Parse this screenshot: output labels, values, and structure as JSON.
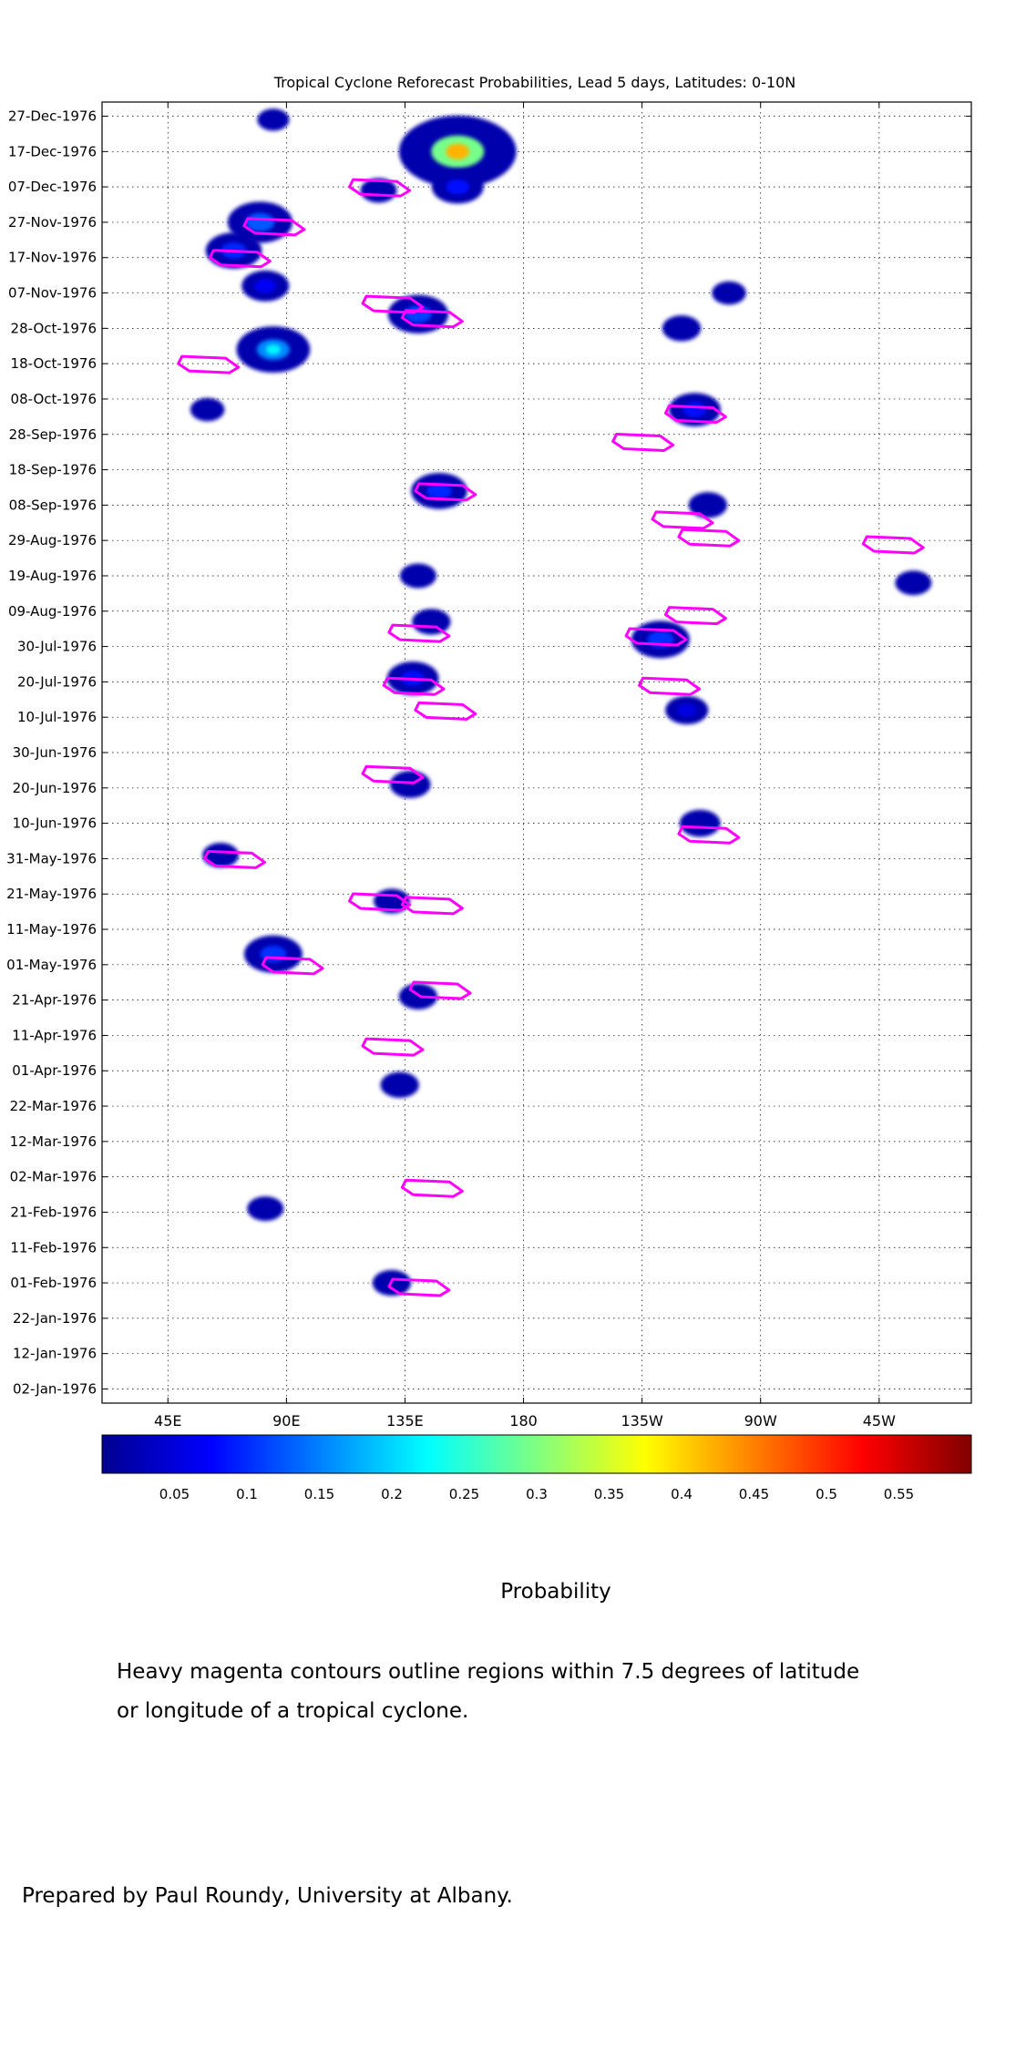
{
  "chart_data": {
    "type": "heatmap",
    "title": "Tropical Cyclone Reforecast Probabilities, Lead 5 days, Latitudes: 0-10N",
    "xlabel": "",
    "ylabel": "",
    "colorbar_label": "Probability",
    "x_ticks": [
      {
        "lon": 45,
        "label": "45E"
      },
      {
        "lon": 90,
        "label": "90E"
      },
      {
        "lon": 135,
        "label": "135E"
      },
      {
        "lon": 180,
        "label": "180"
      },
      {
        "lon": 225,
        "label": "135W"
      },
      {
        "lon": 270,
        "label": "90W"
      },
      {
        "lon": 315,
        "label": "45W"
      }
    ],
    "xlim": [
      20,
      350
    ],
    "y_ticks": [
      "02-Jan-1976",
      "12-Jan-1976",
      "22-Jan-1976",
      "01-Feb-1976",
      "11-Feb-1976",
      "21-Feb-1976",
      "02-Mar-1976",
      "12-Mar-1976",
      "22-Mar-1976",
      "01-Apr-1976",
      "11-Apr-1976",
      "21-Apr-1976",
      "01-May-1976",
      "11-May-1976",
      "21-May-1976",
      "31-May-1976",
      "10-Jun-1976",
      "20-Jun-1976",
      "30-Jun-1976",
      "10-Jul-1976",
      "20-Jul-1976",
      "30-Jul-1976",
      "09-Aug-1976",
      "19-Aug-1976",
      "29-Aug-1976",
      "08-Sep-1976",
      "18-Sep-1976",
      "28-Sep-1976",
      "08-Oct-1976",
      "18-Oct-1976",
      "28-Oct-1976",
      "07-Nov-1976",
      "17-Nov-1976",
      "27-Nov-1976",
      "07-Dec-1976",
      "17-Dec-1976",
      "27-Dec-1976"
    ],
    "ylim": [
      "29-Dec-1975",
      "31-Dec-1976"
    ],
    "grid": true,
    "colorbar": {
      "ticks": [
        0.05,
        0.1,
        0.15,
        0.2,
        0.25,
        0.3,
        0.35,
        0.4,
        0.45,
        0.5,
        0.55
      ],
      "range": [
        0.0,
        0.6
      ],
      "colormap": [
        "#00008f",
        "#0000ff",
        "#0080ff",
        "#00ffff",
        "#80ff80",
        "#ffff00",
        "#ff8000",
        "#ff0000",
        "#800000"
      ]
    },
    "blobs": [
      {
        "lon": 85,
        "date": "26-Dec-1976",
        "value": 0.03
      },
      {
        "lon": 155,
        "date": "17-Dec-1976",
        "value": 0.42
      },
      {
        "lon": 155,
        "date": "07-Dec-1976",
        "value": 0.12
      },
      {
        "lon": 125,
        "date": "06-Dec-1976",
        "value": 0.05
      },
      {
        "lon": 80,
        "date": "27-Nov-1976",
        "value": 0.18
      },
      {
        "lon": 70,
        "date": "19-Nov-1976",
        "value": 0.14
      },
      {
        "lon": 82,
        "date": "09-Nov-1976",
        "value": 0.1
      },
      {
        "lon": 140,
        "date": "01-Nov-1976",
        "value": 0.16
      },
      {
        "lon": 85,
        "date": "22-Oct-1976",
        "value": 0.22
      },
      {
        "lon": 60,
        "date": "05-Oct-1976",
        "value": 0.04
      },
      {
        "lon": 240,
        "date": "28-Oct-1976",
        "value": 0.06
      },
      {
        "lon": 245,
        "date": "05-Oct-1976",
        "value": 0.12
      },
      {
        "lon": 258,
        "date": "07-Nov-1976",
        "value": 0.04
      },
      {
        "lon": 148,
        "date": "12-Sep-1976",
        "value": 0.14
      },
      {
        "lon": 250,
        "date": "08-Sep-1976",
        "value": 0.06
      },
      {
        "lon": 328,
        "date": "17-Aug-1976",
        "value": 0.05
      },
      {
        "lon": 140,
        "date": "19-Aug-1976",
        "value": 0.05
      },
      {
        "lon": 145,
        "date": "06-Aug-1976",
        "value": 0.06
      },
      {
        "lon": 232,
        "date": "01-Aug-1976",
        "value": 0.15
      },
      {
        "lon": 138,
        "date": "21-Jul-1976",
        "value": 0.12
      },
      {
        "lon": 242,
        "date": "12-Jul-1976",
        "value": 0.08
      },
      {
        "lon": 137,
        "date": "21-Jun-1976",
        "value": 0.07
      },
      {
        "lon": 247,
        "date": "10-Jun-1976",
        "value": 0.07
      },
      {
        "lon": 65,
        "date": "01-Jun-1976",
        "value": 0.05
      },
      {
        "lon": 130,
        "date": "19-May-1976",
        "value": 0.05
      },
      {
        "lon": 85,
        "date": "04-May-1976",
        "value": 0.15
      },
      {
        "lon": 140,
        "date": "22-Apr-1976",
        "value": 0.06
      },
      {
        "lon": 133,
        "date": "28-Mar-1976",
        "value": 0.06
      },
      {
        "lon": 82,
        "date": "22-Feb-1976",
        "value": 0.05
      },
      {
        "lon": 130,
        "date": "01-Feb-1976",
        "value": 0.06
      }
    ],
    "contour_note": "Heavy magenta contours outline regions within 7.5 degrees of latitude or longitude of a tropical cyclone.",
    "contours": [
      {
        "lon": 125,
        "date": "07-Dec-1976"
      },
      {
        "lon": 85,
        "date": "26-Nov-1976"
      },
      {
        "lon": 72,
        "date": "17-Nov-1976"
      },
      {
        "lon": 130,
        "date": "04-Nov-1976"
      },
      {
        "lon": 145,
        "date": "31-Oct-1976"
      },
      {
        "lon": 60,
        "date": "18-Oct-1976"
      },
      {
        "lon": 245,
        "date": "04-Oct-1976"
      },
      {
        "lon": 225,
        "date": "26-Sep-1976"
      },
      {
        "lon": 150,
        "date": "12-Sep-1976"
      },
      {
        "lon": 240,
        "date": "04-Sep-1976"
      },
      {
        "lon": 250,
        "date": "30-Aug-1976"
      },
      {
        "lon": 320,
        "date": "28-Aug-1976"
      },
      {
        "lon": 245,
        "date": "08-Aug-1976"
      },
      {
        "lon": 230,
        "date": "02-Aug-1976"
      },
      {
        "lon": 140,
        "date": "03-Aug-1976"
      },
      {
        "lon": 138,
        "date": "19-Jul-1976"
      },
      {
        "lon": 235,
        "date": "19-Jul-1976"
      },
      {
        "lon": 150,
        "date": "12-Jul-1976"
      },
      {
        "lon": 130,
        "date": "24-Jun-1976"
      },
      {
        "lon": 250,
        "date": "07-Jun-1976"
      },
      {
        "lon": 70,
        "date": "31-May-1976"
      },
      {
        "lon": 125,
        "date": "19-May-1976"
      },
      {
        "lon": 145,
        "date": "18-May-1976"
      },
      {
        "lon": 92,
        "date": "01-May-1976"
      },
      {
        "lon": 148,
        "date": "24-Apr-1976"
      },
      {
        "lon": 130,
        "date": "08-Apr-1976"
      },
      {
        "lon": 145,
        "date": "28-Feb-1976"
      },
      {
        "lon": 140,
        "date": "31-Jan-1976"
      }
    ]
  },
  "notes": {
    "line1": "Heavy magenta contours outline regions within 7.5 degrees of latitude",
    "line2": "or longitude of a tropical cyclone.",
    "credit": "Prepared by Paul Roundy, University at Albany."
  }
}
